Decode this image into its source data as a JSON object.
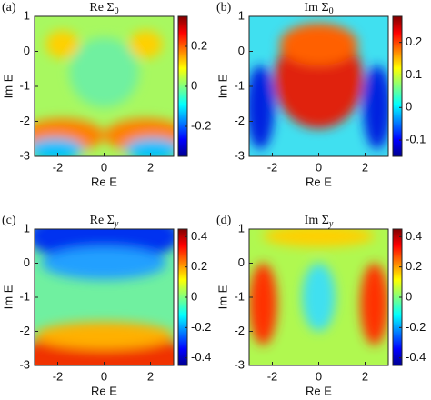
{
  "chart_data": [
    {
      "type": "heatmap",
      "panel_label": "(a)",
      "title": "Re Σ",
      "title_subscript": "0",
      "xlabel": "Re E",
      "ylabel": "Im E",
      "xlim": [
        -3,
        3
      ],
      "ylim": [
        -3,
        1
      ],
      "xticks": [
        -2,
        0,
        2
      ],
      "yticks": [
        -3,
        -2,
        -1,
        0,
        1
      ],
      "colormap": "jet",
      "clim": [
        -0.35,
        0.35
      ],
      "cticks": [
        -0.2,
        0,
        0.2
      ]
    },
    {
      "type": "heatmap",
      "panel_label": "(b)",
      "title": "Im Σ",
      "title_subscript": "0",
      "xlabel": "Re E",
      "ylabel": "Im E",
      "xlim": [
        -3,
        3
      ],
      "ylim": [
        -3,
        1
      ],
      "xticks": [
        -2,
        0,
        2
      ],
      "yticks": [
        -3,
        -2,
        -1,
        0,
        1
      ],
      "colormap": "jet",
      "clim": [
        -0.15,
        0.28
      ],
      "cticks": [
        -0.1,
        0,
        0.1,
        0.2
      ]
    },
    {
      "type": "heatmap",
      "panel_label": "(c)",
      "title": "Re Σ",
      "title_subscript": "y",
      "xlabel": "Re E",
      "ylabel": "Im E",
      "xlim": [
        -3,
        3
      ],
      "ylim": [
        -3,
        1
      ],
      "xticks": [
        -2,
        0,
        2
      ],
      "yticks": [
        -3,
        -2,
        -1,
        0,
        1
      ],
      "colormap": "jet",
      "clim": [
        -0.45,
        0.45
      ],
      "cticks": [
        -0.4,
        -0.2,
        0,
        0.2,
        0.4
      ]
    },
    {
      "type": "heatmap",
      "panel_label": "(d)",
      "title": "Im Σ",
      "title_subscript": "y",
      "xlabel": "Re E",
      "ylabel": "Im E",
      "xlim": [
        -3,
        3
      ],
      "ylim": [
        -3,
        1
      ],
      "xticks": [
        -2,
        0,
        2
      ],
      "yticks": [
        -3,
        -2,
        -1,
        0,
        1
      ],
      "colormap": "jet",
      "clim": [
        -0.45,
        0.45
      ],
      "cticks": [
        -0.4,
        -0.2,
        0,
        0.2,
        0.4
      ]
    }
  ]
}
